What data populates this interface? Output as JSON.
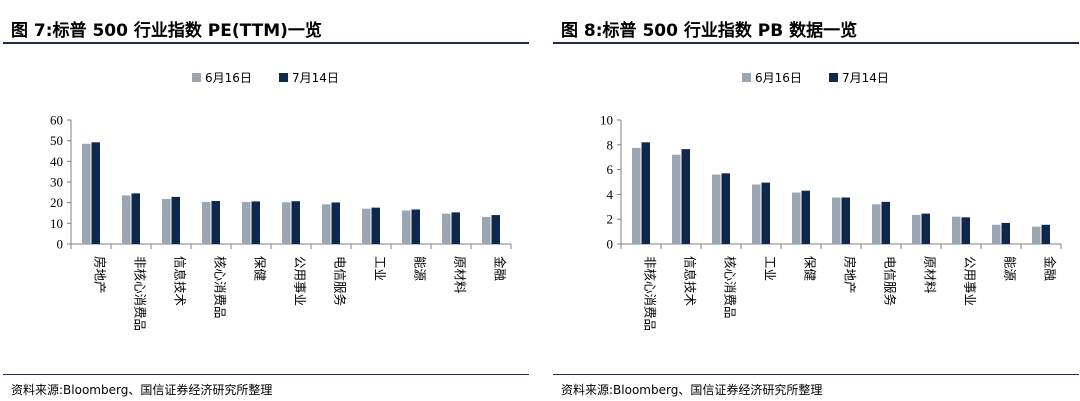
{
  "colors": {
    "series_0": "#9aa6b2",
    "series_1": "#10284e",
    "axis": "#7f7f7f"
  },
  "panels": [
    {
      "title": "图 7:标普 500 行业指数 PE(TTM)一览",
      "source": "资料来源:Bloomberg、国信证券经济研究所整理",
      "chart_data": {
        "type": "bar",
        "categories": [
          "房地产",
          "非核心消费品",
          "信息技术",
          "核心消费品",
          "保健",
          "公用事业",
          "电信服务",
          "工业",
          "能源",
          "原材料",
          "金融"
        ],
        "series": [
          {
            "name": "6月16日",
            "values": [
              48.5,
              23.5,
              21.8,
              20.3,
              20.3,
              20.2,
              19.2,
              17.1,
              16.2,
              14.7,
              13.1
            ]
          },
          {
            "name": "7月14日",
            "values": [
              49.2,
              24.5,
              22.8,
              20.8,
              20.6,
              20.7,
              20.1,
              17.6,
              16.7,
              15.3,
              14.0
            ]
          }
        ],
        "yticks": [
          "0",
          "10",
          "20",
          "30",
          "40",
          "50",
          "60"
        ],
        "ylim": [
          0,
          60
        ],
        "legend": "top-center"
      }
    },
    {
      "title": "图 8:标普 500 行业指数 PB 数据一览",
      "source": "资料来源:Bloomberg、国信证券经济研究所整理",
      "chart_data": {
        "type": "bar",
        "categories": [
          "非核心消费品",
          "信息技术",
          "核心消费品",
          "工业",
          "保健",
          "房地产",
          "电信服务",
          "原材料",
          "公用事业",
          "能源",
          "金融"
        ],
        "series": [
          {
            "name": "6月16日",
            "values": [
              7.75,
              7.2,
              5.6,
              4.8,
              4.15,
              3.75,
              3.2,
              2.35,
              2.2,
              1.55,
              1.4
            ]
          },
          {
            "name": "7月14日",
            "values": [
              8.2,
              7.65,
              5.7,
              4.95,
              4.3,
              3.75,
              3.4,
              2.45,
              2.15,
              1.7,
              1.55
            ]
          }
        ],
        "yticks": [
          "0",
          "2",
          "4",
          "6",
          "8",
          "10"
        ],
        "ylim": [
          0,
          10
        ],
        "legend": "top-center"
      }
    }
  ]
}
